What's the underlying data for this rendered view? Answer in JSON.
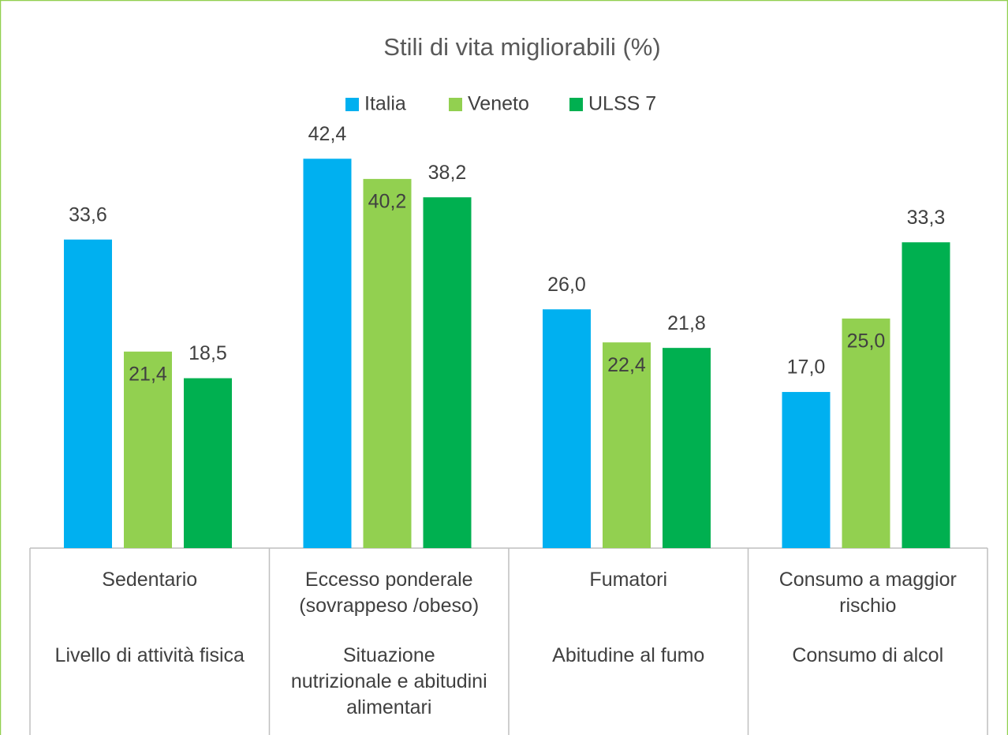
{
  "chart_data": {
    "type": "bar",
    "title": "Stili di vita migliorabili (%)",
    "categories": [
      "Sedentario",
      "Eccesso ponderale (sovrappeso /obeso)",
      "Fumatori",
      "Consumo a maggior rischio"
    ],
    "groups": [
      "Livello di attività fisica",
      "Situazione nutrizionale e abitudini alimentari",
      "Abitudine al fumo",
      "Consumo di alcol"
    ],
    "series": [
      {
        "name": "Italia",
        "color": "#00b0f0",
        "values": [
          33.6,
          42.4,
          26.0,
          17.0
        ],
        "value_labels": [
          "33,6",
          "42,4",
          "26,0",
          "17,0"
        ]
      },
      {
        "name": "Veneto",
        "color": "#92d050",
        "values": [
          21.4,
          40.2,
          22.4,
          25.0
        ],
        "value_labels": [
          "21,4",
          "40,2",
          "22,4",
          "25,0"
        ]
      },
      {
        "name": "ULSS 7",
        "color": "#00b050",
        "values": [
          18.5,
          38.2,
          21.8,
          33.3
        ],
        "value_labels": [
          "18,5",
          "38,2",
          "21,8",
          "33,3"
        ]
      }
    ],
    "ylim": [
      0,
      45
    ],
    "legend": "top"
  }
}
